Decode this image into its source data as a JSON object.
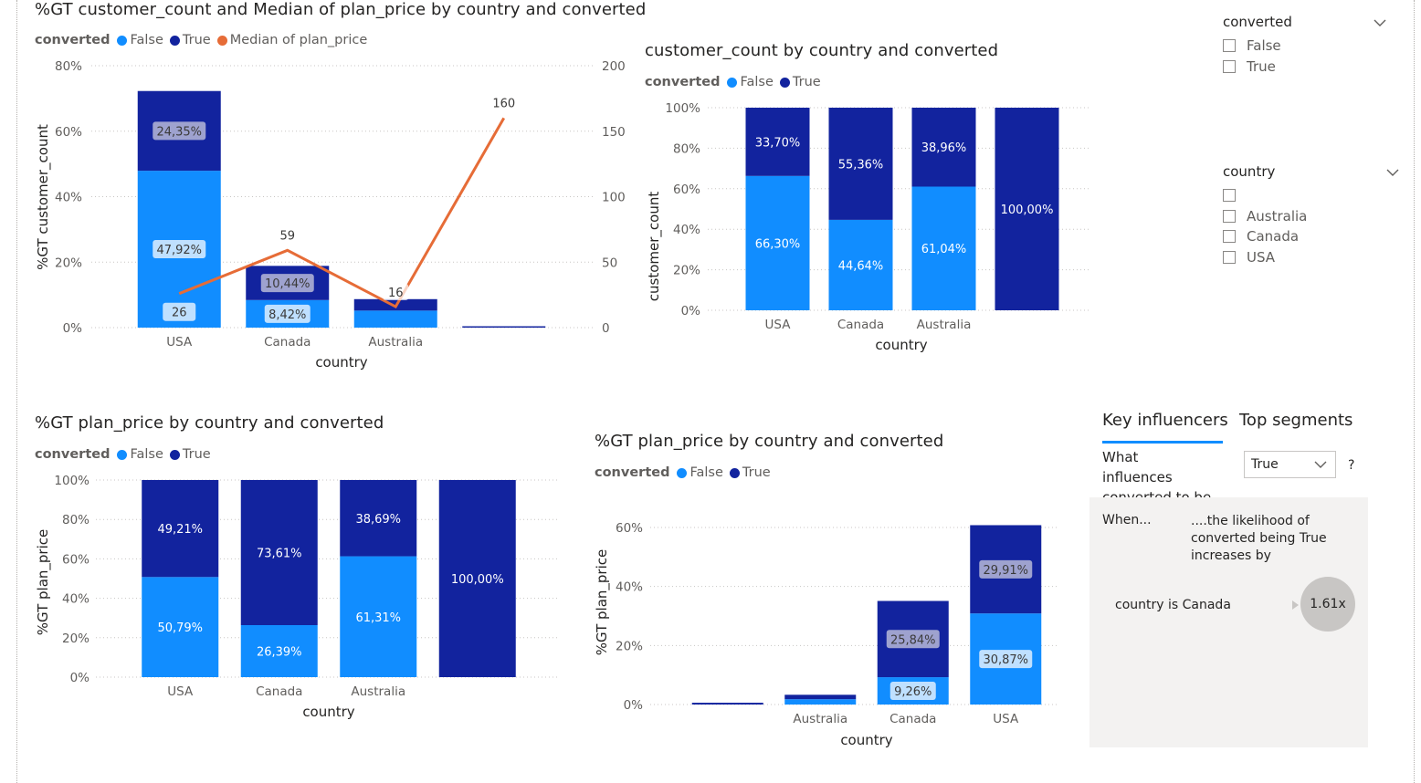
{
  "colors": {
    "false": "#118dff",
    "true": "#12239e",
    "median": "#e66c37",
    "label_bg_dark": "#9ea2cf",
    "label_bg_light": "#bfe0ff"
  },
  "legend_title": "converted",
  "legend_false": "False",
  "legend_true": "True",
  "legend_median": "Median of plan_price",
  "chart1": {
    "title": "%GT customer_count and Median of plan_price by country and converted",
    "chart_data": {
      "type": "bar",
      "stacked": true,
      "combo_line": true,
      "categories": [
        "USA",
        "Canada",
        "Australia",
        ""
      ],
      "series": [
        {
          "name": "False",
          "values": [
            47.92,
            8.42,
            5.2,
            0
          ],
          "labels": [
            "47,92%",
            "8,42%",
            "",
            ""
          ]
        },
        {
          "name": "True",
          "values": [
            24.35,
            10.44,
            3.5,
            0.3
          ],
          "labels": [
            "24,35%",
            "10,44%",
            "",
            ""
          ]
        }
      ],
      "line": {
        "name": "Median of plan_price",
        "values": [
          26,
          59,
          16,
          160
        ],
        "labels": [
          "26",
          "59",
          "16",
          "160"
        ]
      },
      "xlabel": "country",
      "ylabel": "%GT customer_count",
      "ylim": [
        0,
        80
      ],
      "yticks": [
        "0%",
        "20%",
        "40%",
        "60%",
        "80%"
      ],
      "y2lim": [
        0,
        200
      ],
      "y2ticks": [
        "0",
        "50",
        "100",
        "150",
        "200"
      ]
    }
  },
  "chart2": {
    "title": "customer_count by country and converted",
    "chart_data": {
      "type": "bar",
      "stacked": true,
      "categories": [
        "USA",
        "Canada",
        "Australia",
        ""
      ],
      "series": [
        {
          "name": "False",
          "values": [
            66.3,
            44.64,
            61.04,
            0
          ],
          "labels": [
            "66,30%",
            "44,64%",
            "61,04%",
            ""
          ]
        },
        {
          "name": "True",
          "values": [
            33.7,
            55.36,
            38.96,
            100
          ],
          "labels": [
            "33,70%",
            "55,36%",
            "38,96%",
            "100,00%"
          ]
        }
      ],
      "xlabel": "country",
      "ylabel": "customer_count",
      "ylim": [
        0,
        100
      ],
      "yticks": [
        "0%",
        "20%",
        "40%",
        "60%",
        "80%",
        "100%"
      ]
    }
  },
  "chart3": {
    "title": "%GT plan_price by country and converted",
    "chart_data": {
      "type": "bar",
      "stacked": true,
      "categories": [
        "USA",
        "Canada",
        "Australia",
        ""
      ],
      "series": [
        {
          "name": "False",
          "values": [
            50.79,
            26.39,
            61.31,
            0
          ],
          "labels": [
            "50,79%",
            "26,39%",
            "61,31%",
            ""
          ]
        },
        {
          "name": "True",
          "values": [
            49.21,
            73.61,
            38.69,
            100
          ],
          "labels": [
            "49,21%",
            "73,61%",
            "38,69%",
            "100,00%"
          ]
        }
      ],
      "xlabel": "country",
      "ylabel": "%GT plan_price",
      "ylim": [
        0,
        100
      ],
      "yticks": [
        "0%",
        "20%",
        "40%",
        "60%",
        "80%",
        "100%"
      ]
    }
  },
  "chart4": {
    "title": "%GT plan_price by country and converted",
    "chart_data": {
      "type": "bar",
      "stacked": true,
      "categories": [
        "",
        "Australia",
        "Canada",
        "USA"
      ],
      "series": [
        {
          "name": "False",
          "values": [
            0,
            1.8,
            9.26,
            30.87
          ],
          "labels": [
            "",
            "",
            "9,26%",
            "30,87%"
          ]
        },
        {
          "name": "True",
          "values": [
            0.6,
            1.5,
            25.84,
            29.91
          ],
          "labels": [
            "",
            "",
            "25,84%",
            "29,91%"
          ]
        }
      ],
      "xlabel": "country",
      "ylabel": "%GT plan_price",
      "ylim": [
        0,
        60
      ],
      "yticks": [
        "0%",
        "20%",
        "40%",
        "60%"
      ]
    }
  },
  "slicer_converted": {
    "title": "converted",
    "items": [
      "False",
      "True"
    ]
  },
  "slicer_country": {
    "title": "country",
    "items": [
      "",
      "Australia",
      "Canada",
      "USA"
    ]
  },
  "key_influencers": {
    "tab_active": "Key influencers",
    "tab_other": "Top segments",
    "question": "What influences converted to be",
    "dropdown_value": "True",
    "help": "?",
    "when": "When...",
    "likelihood": "....the likelihood of converted being True increases by",
    "factor": "country is Canada",
    "factor_value": "1.61x"
  }
}
